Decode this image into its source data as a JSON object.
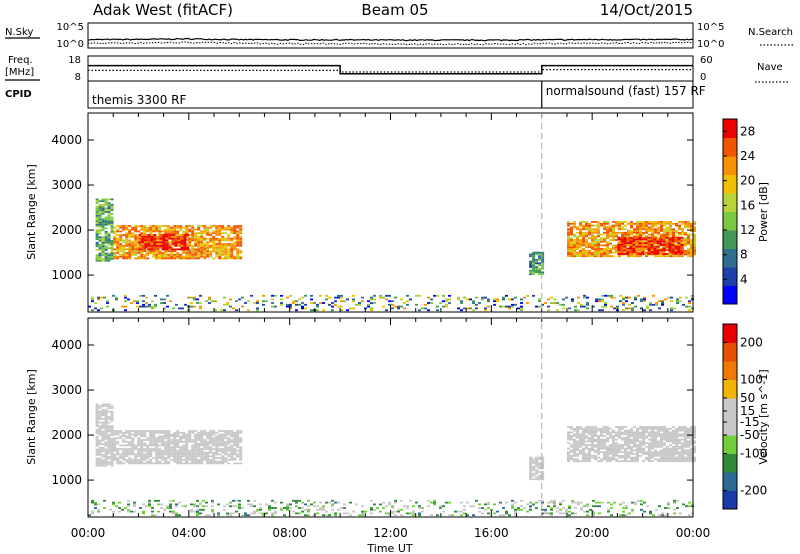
{
  "header": {
    "station": "Adak West (fitACF)",
    "beam": "Beam 05",
    "date": "14/Oct/2015"
  },
  "nsky_panel": {
    "left_label": "N.Sky",
    "right_label": "N.Search",
    "ticks": [
      "10^5",
      "10^0"
    ]
  },
  "freq_panel": {
    "left_label_line1": "Freq.",
    "left_label_line2": "[MHz]",
    "right_label": "Nave",
    "left_ticks": [
      "18",
      "8"
    ],
    "right_ticks": [
      "60",
      "0"
    ]
  },
  "cpid_panel": {
    "label": "CPID",
    "modes": [
      {
        "start": 0,
        "name": "themis 3300 RF"
      },
      {
        "start": 18.0,
        "name": "normalsound (fast) 157 RF"
      }
    ]
  },
  "x_axis": {
    "label": "Time UT",
    "ticks": [
      "00:00",
      "04:00",
      "08:00",
      "12:00",
      "16:00",
      "20:00",
      "00:00"
    ]
  },
  "colors": {
    "power": [
      "#0000ff",
      "#1e3fa8",
      "#2e6e8e",
      "#3f9955",
      "#7ac943",
      "#b9d33a",
      "#f0c000",
      "#f79100",
      "#f25500",
      "#ee0000"
    ],
    "velocity": [
      "#1a3aa8",
      "#2b6a96",
      "#2f8a3a",
      "#72cf3c",
      "#c8c8c8",
      "#c8c8c8",
      "#f2b200",
      "#f07a00",
      "#e84e00",
      "#e80000"
    ],
    "line": "#000000",
    "mode_line": "#aaaaaa"
  },
  "chart_data": [
    {
      "type": "line",
      "title": "N.Sky / N.Search",
      "x": [
        0,
        2,
        4,
        6,
        8,
        10,
        12,
        14,
        16,
        18,
        20,
        22,
        24
      ],
      "series": [
        {
          "name": "N.Sky",
          "values": [
            40,
            45,
            60,
            40,
            35,
            35,
            30,
            30,
            30,
            35,
            40,
            40,
            45
          ]
        },
        {
          "name": "N.Search",
          "values": [
            5,
            6,
            8,
            5,
            4,
            4,
            3,
            3,
            3,
            4,
            5,
            6,
            8
          ]
        }
      ],
      "ylim": [
        1,
        100000
      ],
      "xlim": [
        0,
        24
      ]
    },
    {
      "type": "line",
      "title": "Freq / Nave",
      "series": [
        {
          "name": "Freq.",
          "x": [
            0,
            10,
            10,
            18,
            18,
            24
          ],
          "values": [
            14.0,
            14.0,
            10.6,
            10.6,
            14.0,
            14.0
          ]
        },
        {
          "name": "Nave",
          "x": [
            0,
            10,
            10,
            18,
            18,
            24
          ],
          "values": [
            24,
            24,
            20,
            20,
            26,
            26
          ]
        }
      ],
      "ylim_left": [
        8,
        18
      ],
      "ylim_right": [
        0,
        60
      ],
      "xlim": [
        0,
        24
      ]
    },
    {
      "type": "heatmap",
      "title": "Power",
      "ylabel": "Slant Range [km]",
      "xlabel": "Time UT",
      "yticks": [
        1000,
        2000,
        3000,
        4000
      ],
      "ylim": [
        180,
        4600
      ],
      "xlim": [
        0,
        24
      ],
      "colorbar": {
        "label": "Power [dB]",
        "ticks": [
          4,
          8,
          12,
          16,
          20,
          24,
          28
        ],
        "range": [
          0,
          30
        ]
      },
      "echo_bands": [
        {
          "t_start": 0.3,
          "t_end": 1.0,
          "r_low": 1300,
          "r_high": 2700,
          "value": 12
        },
        {
          "t_start": 1.0,
          "t_end": 6.0,
          "r_low": 1350,
          "r_high": 2100,
          "value": 22
        },
        {
          "t_start": 2.0,
          "t_end": 4.0,
          "r_low": 1550,
          "r_high": 1900,
          "value": 28
        },
        {
          "t_start": 17.5,
          "t_end": 18.0,
          "r_low": 1000,
          "r_high": 1500,
          "value": 10
        },
        {
          "t_start": 19.0,
          "t_end": 24.0,
          "r_low": 1400,
          "r_high": 2200,
          "value": 22
        },
        {
          "t_start": 21.0,
          "t_end": 23.5,
          "r_low": 1450,
          "r_high": 1850,
          "value": 28
        }
      ],
      "near_range_band": {
        "t_start": 0,
        "t_end": 24,
        "r_low": 200,
        "r_high": 550,
        "value": 12
      }
    },
    {
      "type": "heatmap",
      "title": "Velocity",
      "ylabel": "Slant Range [km]",
      "xlabel": "Time UT",
      "yticks": [
        1000,
        2000,
        3000,
        4000
      ],
      "ylim": [
        180,
        4600
      ],
      "xlim": [
        0,
        24
      ],
      "colorbar": {
        "label": "Velocity [m s^-1]",
        "ticks": [
          200,
          100,
          50,
          15,
          -15,
          -50,
          -100,
          -200
        ],
        "range": [
          -250,
          250
        ]
      },
      "echo_bands": [
        {
          "t_start": 0.3,
          "t_end": 1.0,
          "r_low": 1300,
          "r_high": 2700,
          "value": 0
        },
        {
          "t_start": 1.0,
          "t_end": 6.0,
          "r_low": 1350,
          "r_high": 2100,
          "value": 0
        },
        {
          "t_start": 17.5,
          "t_end": 18.0,
          "r_low": 1000,
          "r_high": 1500,
          "value": -40
        },
        {
          "t_start": 19.0,
          "t_end": 24.0,
          "r_low": 1400,
          "r_high": 2200,
          "value": 0
        }
      ],
      "near_range_band": {
        "t_start": 0,
        "t_end": 24,
        "r_low": 200,
        "r_high": 550,
        "value": -60
      }
    }
  ]
}
